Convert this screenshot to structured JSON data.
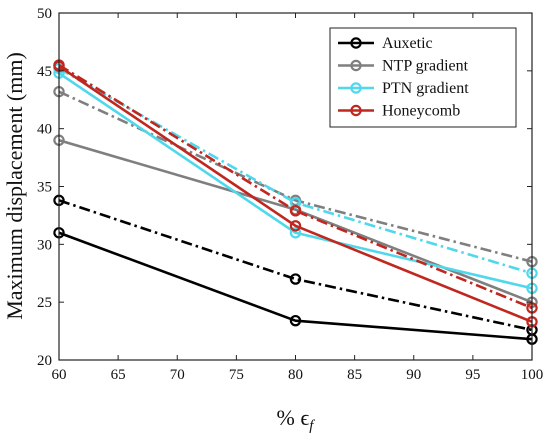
{
  "chart_data": {
    "type": "line",
    "xlabel": "% ϵ",
    "xlabel_sub": "f",
    "ylabel": "Maximum displacement (mm)",
    "xlim": [
      60,
      100
    ],
    "ylim": [
      20,
      50
    ],
    "xticks": [
      60,
      65,
      70,
      75,
      80,
      85,
      90,
      95,
      100
    ],
    "yticks": [
      20,
      25,
      30,
      35,
      40,
      45,
      50
    ],
    "grid": false,
    "legend_position": "top-right",
    "series": [
      {
        "name": "Auxetic",
        "color": "#000000",
        "style": "solid",
        "legend": true,
        "x": [
          60,
          80,
          100
        ],
        "y": [
          31.0,
          23.4,
          21.8
        ]
      },
      {
        "name": "Auxetic",
        "color": "#000000",
        "style": "dashdot",
        "legend": false,
        "x": [
          60,
          80,
          100
        ],
        "y": [
          33.8,
          27.0,
          22.6
        ]
      },
      {
        "name": "NTP gradient",
        "color": "#7f7f7f",
        "style": "solid",
        "legend": true,
        "x": [
          60,
          80,
          100
        ],
        "y": [
          39.0,
          33.0,
          25.0
        ]
      },
      {
        "name": "NTP gradient",
        "color": "#7f7f7f",
        "style": "dashdot",
        "legend": false,
        "x": [
          60,
          80,
          100
        ],
        "y": [
          43.2,
          33.8,
          28.5
        ]
      },
      {
        "name": "PTN gradient",
        "color": "#4fd8ec",
        "style": "solid",
        "legend": true,
        "x": [
          60,
          80,
          100
        ],
        "y": [
          44.8,
          31.0,
          26.2
        ]
      },
      {
        "name": "PTN gradient",
        "color": "#4fd8ec",
        "style": "dashdot",
        "legend": false,
        "x": [
          60,
          80,
          100
        ],
        "y": [
          45.2,
          33.6,
          27.5
        ]
      },
      {
        "name": "Honeycomb",
        "color": "#c0271f",
        "style": "solid",
        "legend": true,
        "x": [
          60,
          80,
          100
        ],
        "y": [
          45.4,
          31.6,
          23.3
        ]
      },
      {
        "name": "Honeycomb",
        "color": "#c0271f",
        "style": "dashdot",
        "legend": false,
        "x": [
          60,
          80,
          100
        ],
        "y": [
          45.5,
          32.9,
          24.5
        ]
      }
    ]
  }
}
